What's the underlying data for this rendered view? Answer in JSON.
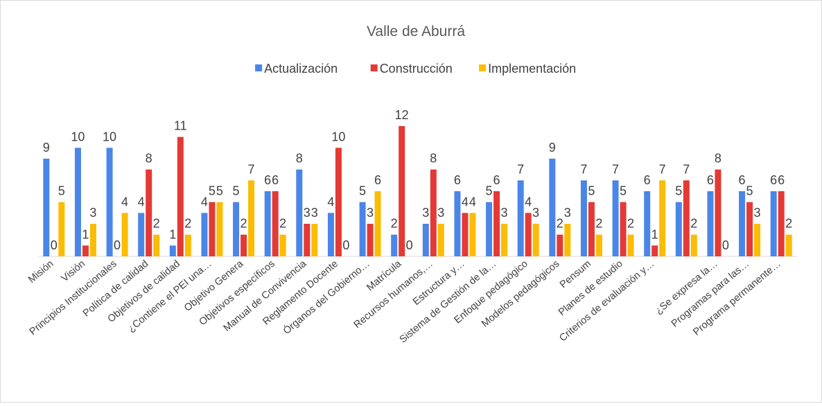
{
  "chart_data": {
    "type": "bar",
    "title": "Valle de Aburrá",
    "categories": [
      "Misión",
      "Visión",
      "Principios Institucionales",
      "Política de calidad",
      "Objetivos de calidad",
      "¿Contiene el PEI una…",
      "Objetivo Genera",
      "Objetivos específicos",
      "Manual de Convivencia",
      "Reglamento Docente",
      "Órganos del Gobierno…",
      "Matrícula",
      "Recursos humanos,…",
      "Estructura y…",
      "Sistema de Gestión de la…",
      "Enfoque pedagógico",
      "Modelos pedagógicos",
      "Pensum",
      "Planes de estudio",
      "Criterios de evaluación y…",
      null,
      "¿Se expresa la…",
      "Programas para las…",
      "Programa permanente…"
    ],
    "series": [
      {
        "name": "Actualización",
        "color": "#4a86e8",
        "values": [
          9,
          10,
          10,
          4,
          1,
          4,
          5,
          6,
          8,
          4,
          5,
          2,
          3,
          6,
          5,
          7,
          9,
          7,
          7,
          6,
          5,
          6,
          6,
          6
        ]
      },
      {
        "name": "Construcción",
        "color": "#e53935",
        "values": [
          0,
          1,
          0,
          8,
          11,
          5,
          2,
          6,
          3,
          10,
          3,
          12,
          8,
          4,
          6,
          4,
          2,
          5,
          5,
          1,
          7,
          8,
          5,
          6
        ]
      },
      {
        "name": "Implementación",
        "color": "#fbbc04",
        "values": [
          5,
          3,
          4,
          2,
          2,
          5,
          7,
          2,
          3,
          0,
          6,
          0,
          3,
          4,
          3,
          3,
          3,
          2,
          2,
          7,
          2,
          0,
          3,
          2
        ]
      }
    ],
    "ylim": [
      0,
      12
    ],
    "legend": "top"
  }
}
